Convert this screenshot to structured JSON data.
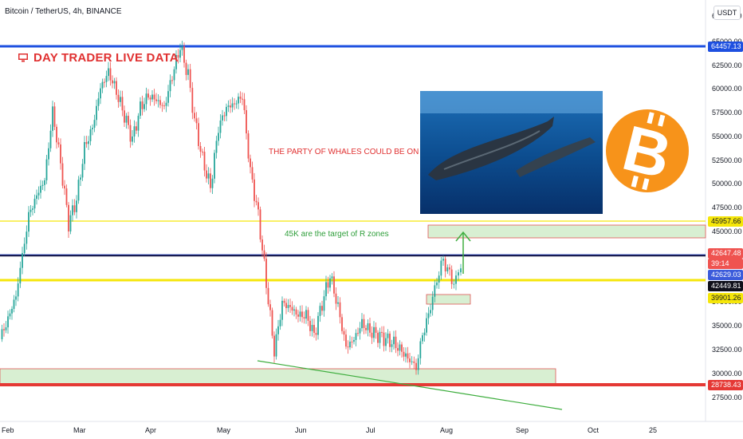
{
  "header": {
    "symbol_line": "Bitcoin / TetherUS, 4h, BINANCE",
    "currency_button": "USDT"
  },
  "overlay": {
    "brand_text": "DAY TRADER LIVE DATA",
    "annotation_whales": "THE PARTY OF WHALES COULD BE ON 45K",
    "annotation_target": "45K are the target of R zones"
  },
  "price_axis": {
    "ticks": [
      "67500.00",
      "65000.00",
      "62500.00",
      "60000.00",
      "57500.00",
      "55000.00",
      "52500.00",
      "50000.00",
      "47500.00",
      "45000.00",
      "37500.00",
      "35000.00",
      "32500.00",
      "30000.00",
      "27500.00"
    ]
  },
  "time_axis": {
    "labels": [
      "Feb",
      "Mar",
      "Apr",
      "May",
      "Jun",
      "Jul",
      "Aug",
      "Sep",
      "Oct",
      "25"
    ]
  },
  "price_tags": {
    "blue_line": "64457.13",
    "yellow_top": "45957.66",
    "last_price": "42647.48",
    "countdown": "39:14",
    "blue_mid": "42629.03",
    "black_line": "42449.81",
    "yellow_low": "39901.26",
    "red_line": "28738.43"
  },
  "colors": {
    "up": "#26a69a",
    "down": "#ef5350",
    "blue_line": "#1e50e0",
    "red_line": "#e53935",
    "yellow_line": "#f5e60a",
    "zone_fill": "#d8efd2",
    "zone_border": "#e05555",
    "trendline": "#3fae3f",
    "bitcoin_orange": "#f7931a"
  }
}
